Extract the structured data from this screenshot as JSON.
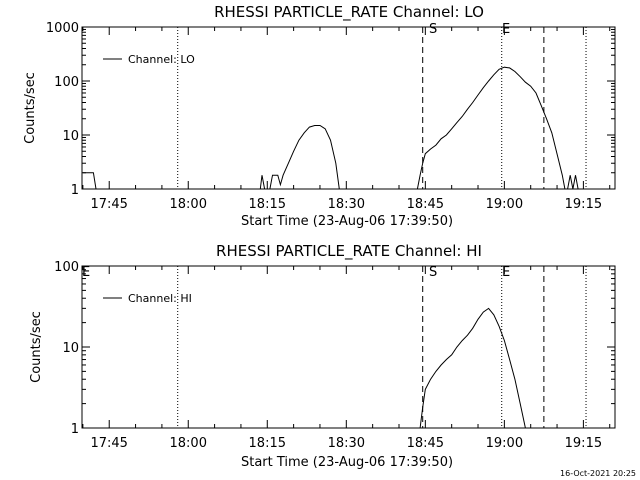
{
  "footer": {
    "date_stamp": "16-Oct-2021 20:25"
  },
  "chart_data": [
    {
      "type": "line",
      "title": "RHESSI PARTICLE_RATE Channel: LO",
      "xlabel": "Start Time (23-Aug-06 17:39:50)",
      "ylabel": "Counts/sec",
      "yscale": "log",
      "xlim_minutes": [
        "17:39:50",
        "19:21:00"
      ],
      "ylim": [
        1,
        1000
      ],
      "x_tick_labels": [
        "17:45",
        "18:00",
        "18:15",
        "18:30",
        "18:45",
        "19:00",
        "19:15"
      ],
      "y_tick_labels": [
        "1",
        "10",
        "100",
        "1000"
      ],
      "legend": {
        "placement": "top-left",
        "entries": [
          "Channel: LO"
        ]
      },
      "markers": {
        "start_label": "S",
        "end_label": "E"
      },
      "vertical_lines": [
        {
          "time": "17:58:00",
          "style": "dotted"
        },
        {
          "time": "18:44:30",
          "style": "dashed"
        },
        {
          "time": "18:59:30",
          "style": "dotted"
        },
        {
          "time": "19:07:30",
          "style": "dashed"
        },
        {
          "time": "19:15:30",
          "style": "dotted"
        }
      ],
      "series": [
        {
          "name": "Channel: LO",
          "segments": [
            [
              [
                "17:40:00",
                2
              ],
              [
                "17:42:00",
                2
              ],
              [
                "17:42:30",
                1
              ]
            ],
            [
              [
                "18:13:40",
                1
              ],
              [
                "18:14:00",
                1.8
              ],
              [
                "18:14:30",
                1
              ],
              [
                "18:15:30",
                1
              ],
              [
                "18:16:00",
                1.8
              ],
              [
                "18:17:00",
                1.8
              ],
              [
                "18:17:30",
                1.2
              ],
              [
                "18:18:00",
                1.8
              ],
              [
                "18:19:00",
                3
              ],
              [
                "18:20:00",
                5
              ],
              [
                "18:21:00",
                8
              ],
              [
                "18:22:00",
                11
              ],
              [
                "18:23:00",
                14
              ],
              [
                "18:24:00",
                15
              ],
              [
                "18:25:00",
                15
              ],
              [
                "18:26:00",
                13
              ],
              [
                "18:27:00",
                8
              ],
              [
                "18:28:00",
                3
              ],
              [
                "18:28:40",
                1
              ]
            ],
            [
              [
                "18:43:30",
                1
              ],
              [
                "18:44:00",
                1.8
              ],
              [
                "18:44:30",
                3
              ],
              [
                "18:45:00",
                4.5
              ],
              [
                "18:46:00",
                5.5
              ],
              [
                "18:47:00",
                6.5
              ],
              [
                "18:48:00",
                8.5
              ],
              [
                "18:49:00",
                10
              ],
              [
                "18:50:00",
                13
              ],
              [
                "18:51:00",
                17
              ],
              [
                "18:52:00",
                22
              ],
              [
                "18:53:00",
                30
              ],
              [
                "18:54:00",
                40
              ],
              [
                "18:55:00",
                55
              ],
              [
                "18:56:00",
                75
              ],
              [
                "18:57:00",
                100
              ],
              [
                "18:58:00",
                130
              ],
              [
                "18:59:00",
                165
              ],
              [
                "19:00:00",
                180
              ],
              [
                "19:01:00",
                175
              ],
              [
                "19:02:00",
                150
              ],
              [
                "19:03:00",
                120
              ],
              [
                "19:04:00",
                95
              ],
              [
                "19:05:00",
                80
              ],
              [
                "19:06:00",
                60
              ],
              [
                "19:07:00",
                35
              ],
              [
                "19:08:00",
                20
              ],
              [
                "19:09:00",
                11
              ],
              [
                "19:10:00",
                4.5
              ],
              [
                "19:11:00",
                1.8
              ],
              [
                "19:11:30",
                1
              ]
            ],
            [
              [
                "19:12:00",
                1
              ],
              [
                "19:12:30",
                1.8
              ],
              [
                "19:13:00",
                1
              ],
              [
                "19:13:30",
                1.8
              ],
              [
                "19:14:00",
                1
              ]
            ]
          ]
        }
      ]
    },
    {
      "type": "line",
      "title": "RHESSI PARTICLE_RATE Channel: HI",
      "xlabel": "Start Time (23-Aug-06 17:39:50)",
      "ylabel": "Counts/sec",
      "yscale": "log",
      "xlim_minutes": [
        "17:39:50",
        "19:21:00"
      ],
      "ylim": [
        1,
        100
      ],
      "x_tick_labels": [
        "17:45",
        "18:00",
        "18:15",
        "18:30",
        "18:45",
        "19:00",
        "19:15"
      ],
      "y_tick_labels": [
        "1",
        "10",
        "100"
      ],
      "legend": {
        "placement": "top-left",
        "entries": [
          "Channel: HI"
        ]
      },
      "markers": {
        "start_label": "S",
        "end_label": "E",
        "edge_label": "E"
      },
      "vertical_lines": [
        {
          "time": "17:58:00",
          "style": "dotted"
        },
        {
          "time": "18:44:30",
          "style": "dashed"
        },
        {
          "time": "18:59:30",
          "style": "dotted"
        },
        {
          "time": "19:07:30",
          "style": "dashed"
        },
        {
          "time": "19:15:30",
          "style": "dotted"
        }
      ],
      "series": [
        {
          "name": "Channel: HI",
          "segments": [
            [
              [
                "18:44:00",
                1
              ],
              [
                "18:44:30",
                1.8
              ],
              [
                "18:45:00",
                3
              ],
              [
                "18:46:00",
                4
              ],
              [
                "18:47:00",
                5
              ],
              [
                "18:48:00",
                6
              ],
              [
                "18:49:00",
                7
              ],
              [
                "18:50:00",
                8
              ],
              [
                "18:51:00",
                10
              ],
              [
                "18:52:00",
                12
              ],
              [
                "18:53:00",
                14
              ],
              [
                "18:54:00",
                17
              ],
              [
                "18:55:00",
                22
              ],
              [
                "18:56:00",
                27
              ],
              [
                "18:57:00",
                30
              ],
              [
                "18:58:00",
                25
              ],
              [
                "18:59:00",
                18
              ],
              [
                "19:00:00",
                12
              ],
              [
                "19:01:00",
                7
              ],
              [
                "19:02:00",
                4
              ],
              [
                "19:03:00",
                2
              ],
              [
                "19:04:00",
                1
              ]
            ]
          ]
        }
      ]
    }
  ]
}
